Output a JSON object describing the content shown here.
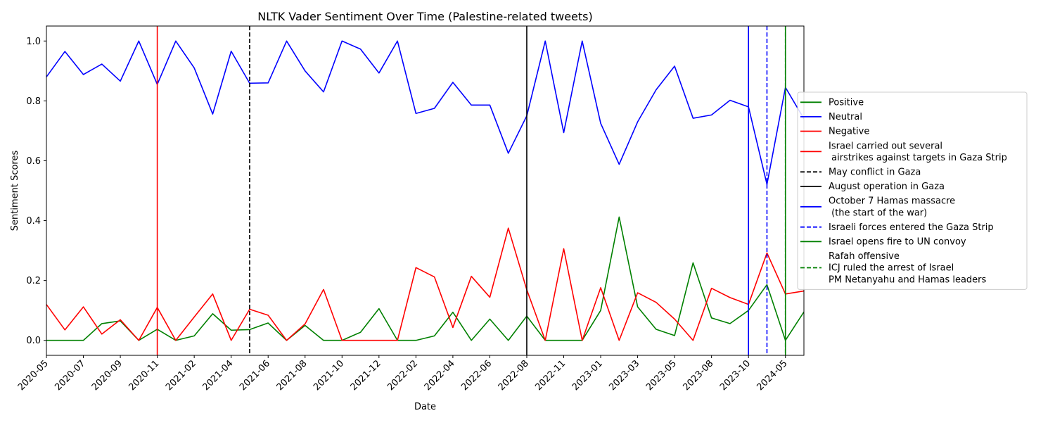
{
  "chart_data": {
    "type": "line",
    "title": "NLTK Vader Sentiment Over Time (Palestine-related tweets)",
    "xlabel": "Date",
    "ylabel": "Sentiment Scores",
    "ylim": [
      -0.05,
      1.05
    ],
    "yticks": [
      "0.0",
      "0.2",
      "0.4",
      "0.6",
      "0.8",
      "1.0"
    ],
    "yticks_values": [
      0.0,
      0.2,
      0.4,
      0.6,
      0.8,
      1.0
    ],
    "xticks": [
      "2020-05",
      "2020-07",
      "2020-09",
      "2020-11",
      "2021-02",
      "2021-04",
      "2021-06",
      "2021-08",
      "2021-10",
      "2021-12",
      "2022-02",
      "2022-04",
      "2022-06",
      "2022-08",
      "2022-11",
      "2023-01",
      "2023-03",
      "2023-05",
      "2023-08",
      "2023-10",
      "2024-05"
    ],
    "x": [
      "2020-05",
      "2020-06",
      "2020-07",
      "2020-08",
      "2020-09",
      "2020-10",
      "2020-11",
      "2020-12",
      "2021-02",
      "2021-03",
      "2021-04",
      "2021-05",
      "2021-06",
      "2021-07",
      "2021-08",
      "2021-09",
      "2021-10",
      "2021-11",
      "2021-12",
      "2022-01",
      "2022-02",
      "2022-03",
      "2022-04",
      "2022-05",
      "2022-06",
      "2022-07",
      "2022-08",
      "2022-09",
      "2022-11",
      "2022-12",
      "2023-01",
      "2023-02",
      "2023-03",
      "2023-04",
      "2023-05",
      "2023-07",
      "2023-08",
      "2023-09",
      "2023-10",
      "2023-11",
      "2024-05",
      "2024-06"
    ],
    "series": [
      {
        "name": "Positive",
        "color": "#008000",
        "dash": "solid",
        "values": [
          0.0,
          0.0,
          0.0,
          0.056,
          0.065,
          0.0,
          0.037,
          0.0,
          0.015,
          0.089,
          0.034,
          0.036,
          0.058,
          0.0,
          0.05,
          0.0,
          0.0,
          0.027,
          0.106,
          0.0,
          0.0,
          0.015,
          0.094,
          0.0,
          0.071,
          0.0,
          0.081,
          0.0,
          0.0,
          0.0,
          0.1,
          0.412,
          0.112,
          0.037,
          0.016,
          0.259,
          0.075,
          0.056,
          0.1,
          0.186,
          0.0,
          0.095
        ]
      },
      {
        "name": "Neutral",
        "color": "#0000ff",
        "dash": "solid",
        "values": [
          0.88,
          0.965,
          0.888,
          0.923,
          0.866,
          1.0,
          0.855,
          1.0,
          0.91,
          0.756,
          0.966,
          0.859,
          0.86,
          1.0,
          0.9,
          0.83,
          1.0,
          0.973,
          0.893,
          1.0,
          0.758,
          0.775,
          0.862,
          0.786,
          0.786,
          0.625,
          0.75,
          1.0,
          0.694,
          1.0,
          0.725,
          0.588,
          0.73,
          0.837,
          0.916,
          0.742,
          0.753,
          0.802,
          0.78,
          0.521,
          0.845,
          0.74
        ]
      },
      {
        "name": "Negative",
        "color": "#ff0000",
        "dash": "solid",
        "values": [
          0.12,
          0.035,
          0.112,
          0.021,
          0.069,
          0.0,
          0.11,
          0.0,
          0.078,
          0.155,
          0.0,
          0.104,
          0.084,
          0.0,
          0.055,
          0.17,
          0.0,
          0.0,
          0.0,
          0.0,
          0.243,
          0.212,
          0.043,
          0.214,
          0.144,
          0.375,
          0.169,
          0.0,
          0.306,
          0.0,
          0.176,
          0.0,
          0.159,
          0.127,
          0.071,
          0.0,
          0.174,
          0.143,
          0.12,
          0.292,
          0.155,
          0.165
        ]
      }
    ],
    "events": [
      {
        "label": "Israel carried out several\n airstrikes against targets in Gaza Strip",
        "date": "2020-11",
        "color": "#ff0000",
        "dash": "solid"
      },
      {
        "label": "May conflict in Gaza",
        "date": "2021-05",
        "color": "#000000",
        "dash": "dashed"
      },
      {
        "label": "August operation in Gaza",
        "date": "2022-08",
        "color": "#000000",
        "dash": "solid"
      },
      {
        "label": "October 7 Hamas massacre\n (the start of the war)",
        "date": "2023-10",
        "color": "#0000ff",
        "dash": "solid"
      },
      {
        "label": "Israeli forces entered the Gaza Strip",
        "date": "2023-11",
        "color": "#0000ff",
        "dash": "dashed"
      },
      {
        "label": "Israel opens fire to UN convoy",
        "date": "2024-05",
        "color": "#008000",
        "dash": "solid"
      },
      {
        "label": "Rafah offensive\nICJ ruled the arrest of Israel\nPM Netanyahu and Hamas leaders",
        "date": "2024-05",
        "color": "#008000",
        "dash": "dashed"
      }
    ],
    "legend_position": "right"
  }
}
